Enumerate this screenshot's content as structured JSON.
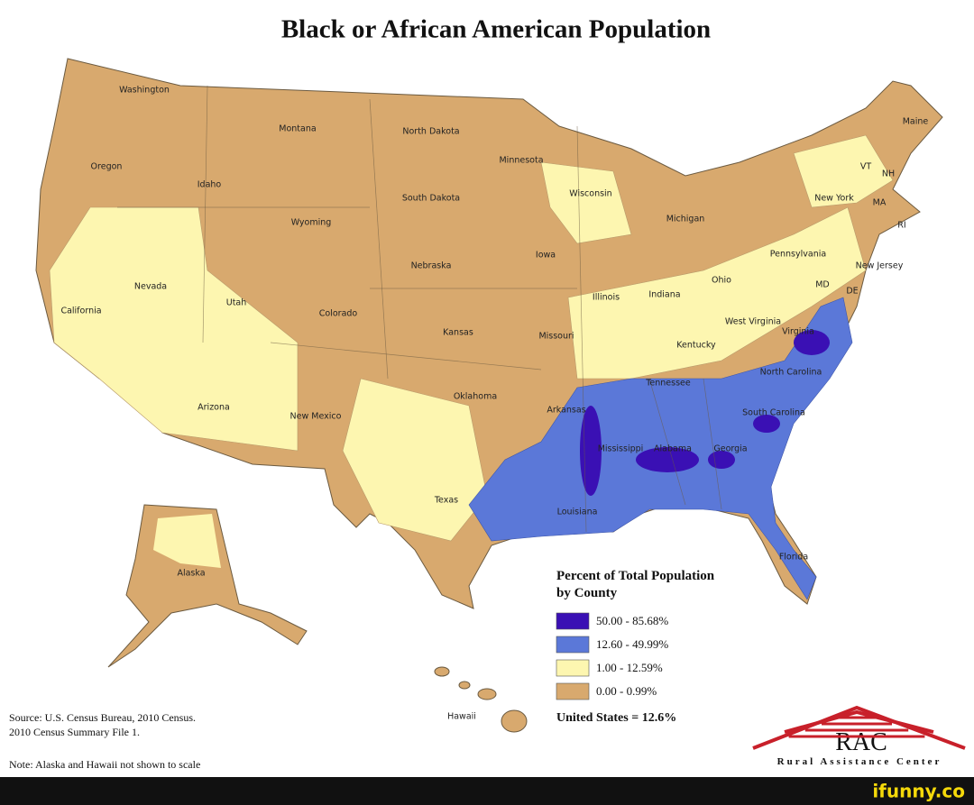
{
  "title": "Black or African American Population",
  "states": [
    "Washington",
    "Montana",
    "North Dakota",
    "Minnesota",
    "Oregon",
    "Idaho",
    "South Dakota",
    "Wisconsin",
    "Wyoming",
    "Michigan",
    "New York",
    "VT",
    "NH",
    "MA",
    "RI",
    "Maine",
    "Iowa",
    "Nebraska",
    "Pennsylvania",
    "New Jersey",
    "Nevada",
    "Utah",
    "Colorado",
    "Illinois",
    "Indiana",
    "Ohio",
    "MD",
    "DE",
    "California",
    "West Virginia",
    "Kansas",
    "Missouri",
    "Virginia",
    "Kentucky",
    "Tennessee",
    "North Carolina",
    "Oklahoma",
    "Arizona",
    "New Mexico",
    "Arkansas",
    "South Carolina",
    "Mississippi",
    "Alabama",
    "Georgia",
    "Texas",
    "Louisiana",
    "Florida",
    "Alaska",
    "Hawaii"
  ],
  "legend": {
    "title": [
      "Percent of Total Population",
      "by County"
    ],
    "items": [
      {
        "label": "50.00 - 85.68%",
        "color": "#3a10b4"
      },
      {
        "label": "12.60 - 49.99%",
        "color": "#5b78d8"
      },
      {
        "label": "1.00 - 12.59%",
        "color": "#fdf6b0"
      },
      {
        "label": "0.00 - 0.99%",
        "color": "#d8a96e"
      }
    ],
    "summary": "United States = 12.6%"
  },
  "source": [
    "Source: U.S. Census Bureau, 2010 Census.",
    "2010 Census Summary File 1."
  ],
  "note": "Note: Alaska and Hawaii not shown to scale",
  "logo": {
    "name": "RAC",
    "full": "Rural Assistance Center",
    "color": "#c8202a"
  },
  "watermark": "ifunny.co"
}
